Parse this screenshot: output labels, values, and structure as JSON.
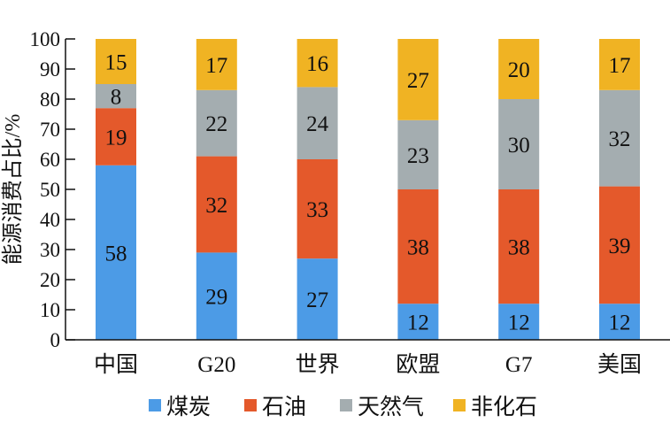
{
  "chart_data": {
    "type": "bar",
    "stacked": true,
    "categories": [
      "中国",
      "G20",
      "世界",
      "欧盟",
      "G7",
      "美国"
    ],
    "series": [
      {
        "name": "煤炭",
        "color": "#4c9be6",
        "values": [
          58,
          29,
          27,
          12,
          12,
          12
        ]
      },
      {
        "name": "石油",
        "color": "#e4592b",
        "values": [
          19,
          32,
          33,
          38,
          38,
          39
        ]
      },
      {
        "name": "天然气",
        "color": "#a4adb0",
        "values": [
          8,
          22,
          24,
          23,
          30,
          32
        ]
      },
      {
        "name": "非化石",
        "color": "#f0b323",
        "values": [
          15,
          17,
          16,
          27,
          20,
          17
        ]
      }
    ],
    "ylabel": "能源消费占比/%",
    "xlabel": "",
    "ylim": [
      0,
      100
    ],
    "yticks": [
      0,
      10,
      20,
      30,
      40,
      50,
      60,
      70,
      80,
      90,
      100
    ],
    "grid": false,
    "legend_position": "bottom",
    "data_labels": true
  }
}
